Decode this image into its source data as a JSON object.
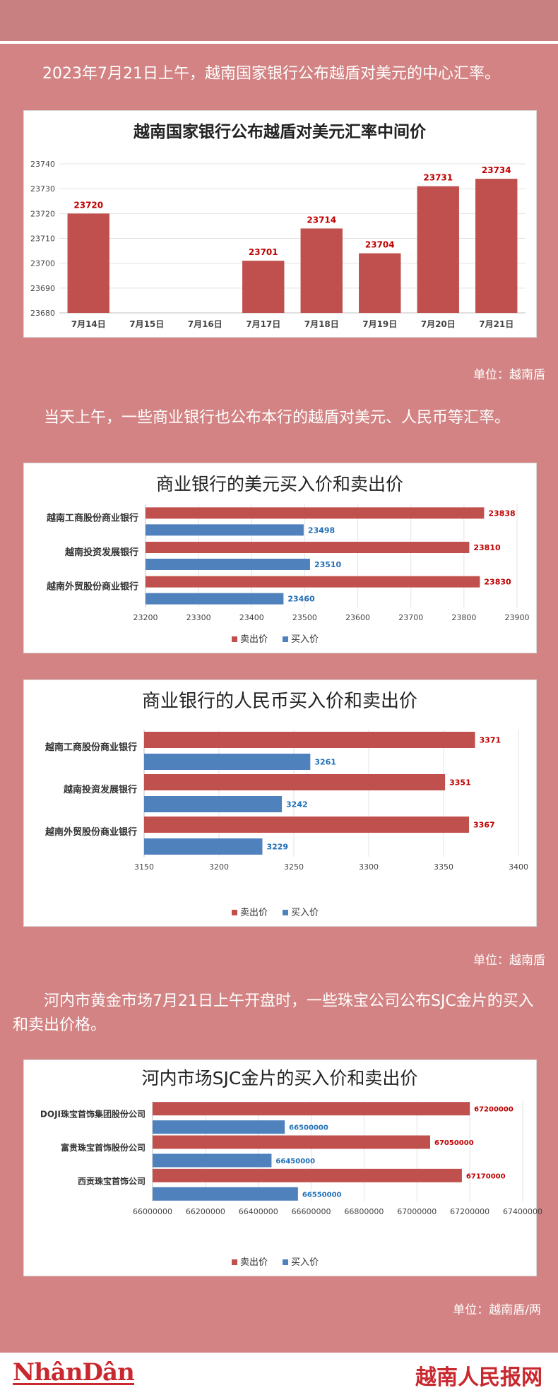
{
  "paragraphs": {
    "p1": "2023年7月21日上午，越南国家银行公布越盾对美元的中心汇率。",
    "p2": "当天上午，一些商业银行也公布本行的越盾对美元、人民币等汇率。",
    "p3": "河内市黄金市场7月21日上午开盘时，一些珠宝公司公布SJC金片的买入和卖出价格。"
  },
  "units": {
    "u1": "单位：越南盾",
    "u2": "单位：越南盾",
    "u3": "单位：越南盾/两"
  },
  "footer": {
    "logo_left": "NhânDân",
    "logo_right": "越南人民报网"
  },
  "colors": {
    "sell": "#c0504d",
    "buy": "#4f81bd",
    "sell_label": "#c00000",
    "buy_label": "#1f6fb7"
  },
  "chart_data": [
    {
      "type": "bar",
      "title": "越南国家银行公布越盾对美元汇率中间价",
      "categories": [
        "7月14日",
        "7月15日",
        "7月16日",
        "7月17日",
        "7月18日",
        "7月19日",
        "7月20日",
        "7月21日"
      ],
      "values": [
        23720,
        null,
        null,
        23701,
        23714,
        23704,
        23731,
        23734
      ],
      "data_labels": [
        "23720",
        "",
        "",
        "23701",
        "23714",
        "23704",
        "23731",
        "23734"
      ],
      "ylim": [
        23680,
        23740
      ],
      "yticks": [
        "23680",
        "23690",
        "23700",
        "23710",
        "23720",
        "23730",
        "23740"
      ],
      "grid": true
    },
    {
      "type": "bar",
      "orientation": "horizontal",
      "title": "商业银行的美元买入价和卖出价",
      "categories": [
        "越南工商股份商业银行",
        "越南投资发展银行",
        "越南外贸股份商业银行"
      ],
      "series": [
        {
          "name": "卖出价",
          "values": [
            23838,
            23810,
            23830
          ],
          "labels": [
            "23838",
            "23810",
            "23830"
          ]
        },
        {
          "name": "买入价",
          "values": [
            23498,
            23510,
            23460
          ],
          "labels": [
            "23498",
            "23510",
            "23460"
          ]
        }
      ],
      "xlim": [
        23200,
        23900
      ],
      "xticks": [
        "23200",
        "23300",
        "23400",
        "23500",
        "23600",
        "23700",
        "23800",
        "23900"
      ],
      "legend": "bottom"
    },
    {
      "type": "bar",
      "orientation": "horizontal",
      "title": "商业银行的人民币买入价和卖出价",
      "categories": [
        "越南工商股份商业银行",
        "越南投资发展银行",
        "越南外贸股份商业银行"
      ],
      "series": [
        {
          "name": "卖出价",
          "values": [
            3371,
            3351,
            3367
          ],
          "labels": [
            "3371",
            "3351",
            "3367"
          ]
        },
        {
          "name": "买入价",
          "values": [
            3261,
            3242,
            3229
          ],
          "labels": [
            "3261",
            "3242",
            "3229"
          ]
        }
      ],
      "xlim": [
        3150,
        3400
      ],
      "xticks": [
        "3150",
        "3200",
        "3250",
        "3300",
        "3350",
        "3400"
      ],
      "legend": "bottom"
    },
    {
      "type": "bar",
      "orientation": "horizontal",
      "title": "河内市场SJC金片的买入价和卖出价",
      "categories": [
        "DOJI珠宝首饰集团股份公司",
        "富贵珠宝首饰股份公司",
        "西贡珠宝首饰公司"
      ],
      "series": [
        {
          "name": "卖出价",
          "values": [
            67200000,
            67050000,
            67170000
          ],
          "labels": [
            "67200000",
            "67050000",
            "67170000"
          ]
        },
        {
          "name": "买入价",
          "values": [
            66500000,
            66450000,
            66550000
          ],
          "labels": [
            "66500000",
            "66450000",
            "66550000"
          ]
        }
      ],
      "xlim": [
        66000000,
        67400000
      ],
      "xticks": [
        "66000000",
        "66200000",
        "66400000",
        "66600000",
        "66800000",
        "67000000",
        "67200000",
        "67400000"
      ],
      "legend": "bottom"
    }
  ]
}
